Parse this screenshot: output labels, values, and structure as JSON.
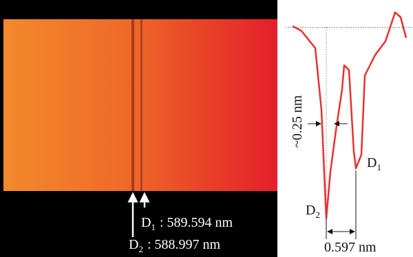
{
  "spectrum": {
    "labels": [
      {
        "letter": "D",
        "sub": "1",
        "text": ": 589.594 nm"
      },
      {
        "letter": "D",
        "sub": "2",
        "text": ": 588.997 nm"
      }
    ]
  },
  "profile": {
    "width_label": "~0.25 nm",
    "peaks": [
      {
        "letter": "D",
        "sub": "1"
      },
      {
        "letter": "D",
        "sub": "2"
      }
    ],
    "separation_label": "0.597 nm"
  }
}
